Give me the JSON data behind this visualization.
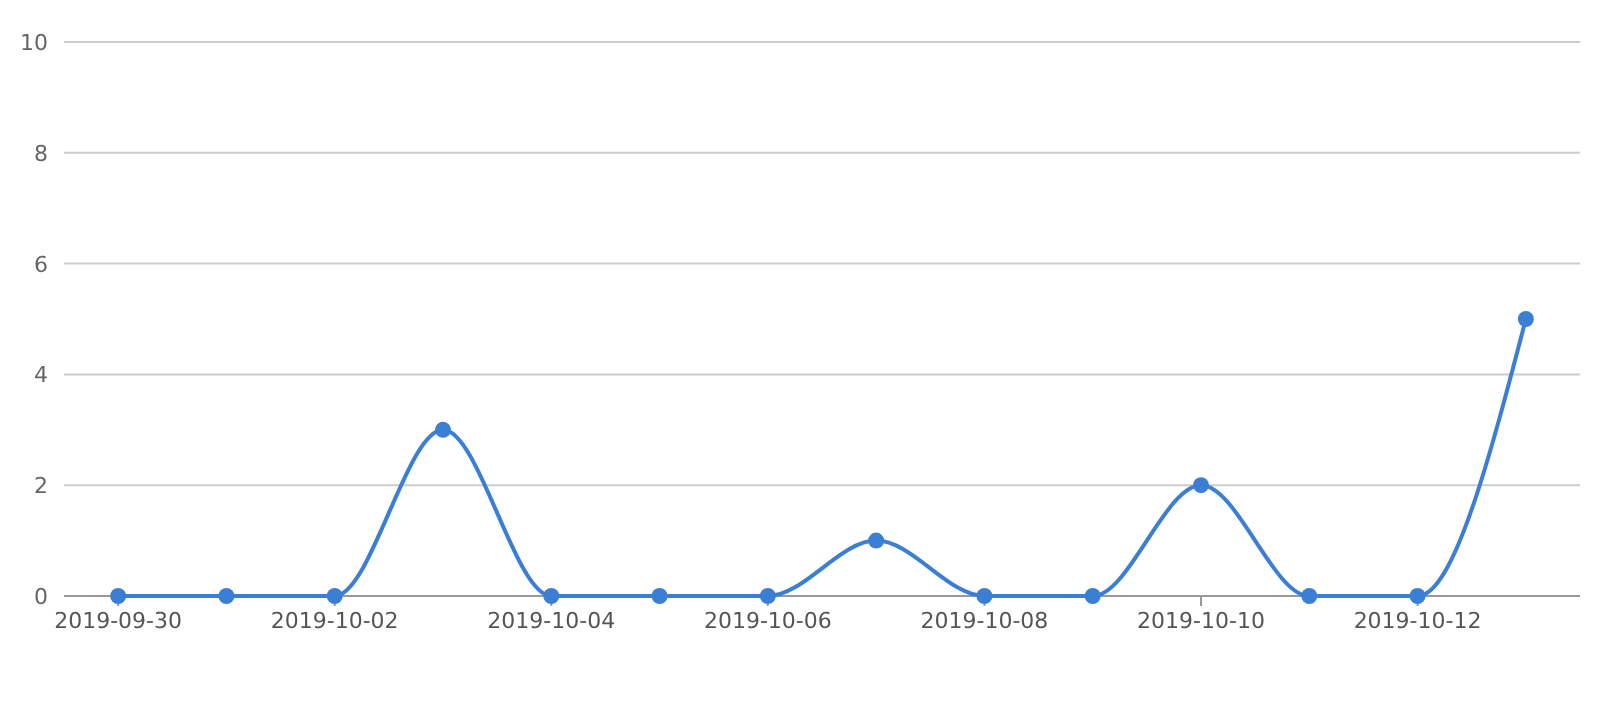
{
  "chart_data": {
    "type": "line",
    "x": [
      "2019-09-30",
      "2019-10-01",
      "2019-10-02",
      "2019-10-03",
      "2019-10-04",
      "2019-10-05",
      "2019-10-06",
      "2019-10-07",
      "2019-10-08",
      "2019-10-09",
      "2019-10-10",
      "2019-10-11",
      "2019-10-12",
      "2019-10-13"
    ],
    "series": [
      {
        "color": "#3a7fd5",
        "values": [
          0,
          0,
          0,
          3,
          0,
          0,
          0,
          1,
          0,
          0,
          2,
          0,
          0,
          5
        ]
      }
    ],
    "xlim": [
      "2019-09-29T12:00",
      "2019-10-13T12:00"
    ],
    "xticks": [
      "2019-09-30",
      "2019-10-02",
      "2019-10-04",
      "2019-10-06",
      "2019-10-08",
      "2019-10-10",
      "2019-10-12"
    ],
    "ylim": [
      0,
      10
    ],
    "yticks": [
      0,
      2,
      4,
      6,
      8,
      10
    ],
    "grid": "y",
    "marker": "circle",
    "line_style": "solid"
  }
}
